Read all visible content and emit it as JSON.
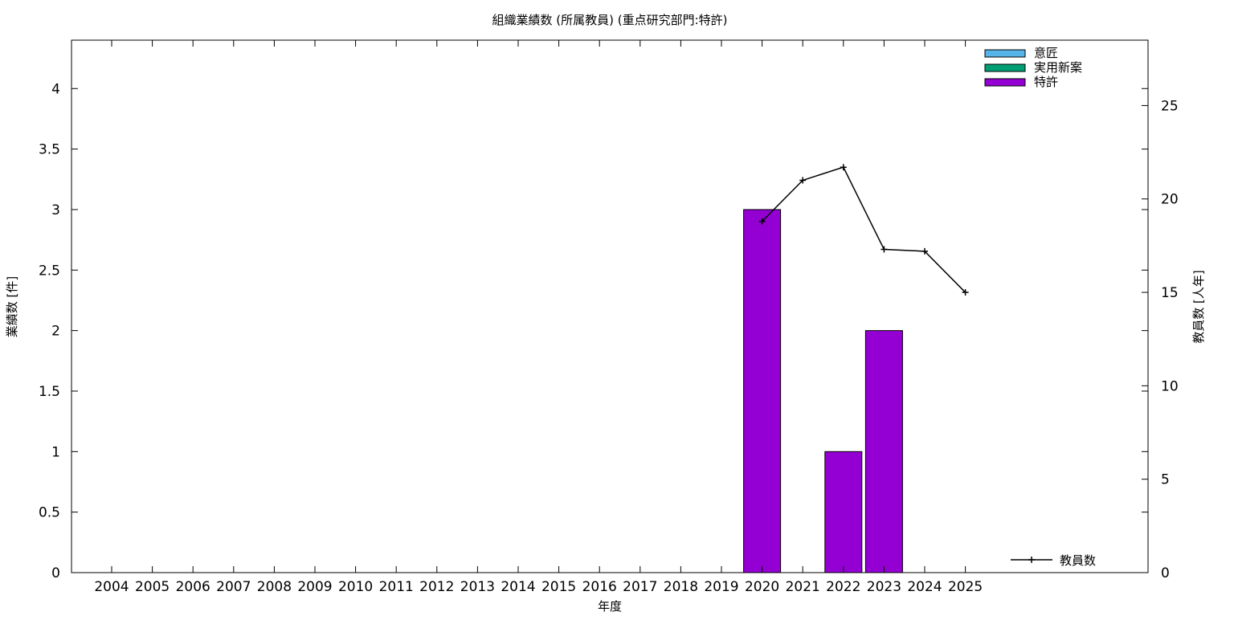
{
  "chart_data": {
    "type": "bar",
    "title": "組織業績数 (所属教員) (重点研究部門:特許)",
    "xlabel": "年度",
    "ylabel": "業績数 [件]",
    "y2label": "教員数 [人年]",
    "ylim": [
      0,
      4.4
    ],
    "y2lim": [
      0,
      28.5
    ],
    "yticks": [
      0,
      0.5,
      1,
      1.5,
      2,
      2.5,
      3,
      3.5,
      4
    ],
    "y2ticks": [
      0,
      5,
      10,
      15,
      20,
      25
    ],
    "grid": false,
    "legend_placement": "top-right",
    "line_legend_placement": "bottom-right",
    "categories": [
      "2004",
      "2005",
      "2006",
      "2007",
      "2008",
      "2009",
      "2010",
      "2011",
      "2012",
      "2013",
      "2014",
      "2015",
      "2016",
      "2017",
      "2018",
      "2019",
      "2020",
      "2021",
      "2022",
      "2023",
      "2024",
      "2025"
    ],
    "series": [
      {
        "name": "意匠",
        "kind": "bar",
        "axis": "y",
        "color": "#56b4e9",
        "values": [
          0,
          0,
          0,
          0,
          0,
          0,
          0,
          0,
          0,
          0,
          0,
          0,
          0,
          0,
          0,
          0,
          0,
          0,
          0,
          0,
          0,
          0
        ]
      },
      {
        "name": "実用新案",
        "kind": "bar",
        "axis": "y",
        "color": "#009e73",
        "values": [
          0,
          0,
          0,
          0,
          0,
          0,
          0,
          0,
          0,
          0,
          0,
          0,
          0,
          0,
          0,
          0,
          0,
          0,
          0,
          0,
          0,
          0
        ]
      },
      {
        "name": "特許",
        "kind": "bar",
        "axis": "y",
        "color": "#9400d3",
        "values": [
          0,
          0,
          0,
          0,
          0,
          0,
          0,
          0,
          0,
          0,
          0,
          0,
          0,
          0,
          0,
          0,
          3,
          0,
          1,
          2,
          0,
          0
        ]
      },
      {
        "name": "教員数",
        "kind": "line",
        "axis": "y2",
        "color": "#000000",
        "values": [
          null,
          null,
          null,
          null,
          null,
          null,
          null,
          null,
          null,
          null,
          null,
          null,
          null,
          null,
          null,
          null,
          18.8,
          21.0,
          21.7,
          17.3,
          17.2,
          15.0
        ]
      }
    ]
  }
}
